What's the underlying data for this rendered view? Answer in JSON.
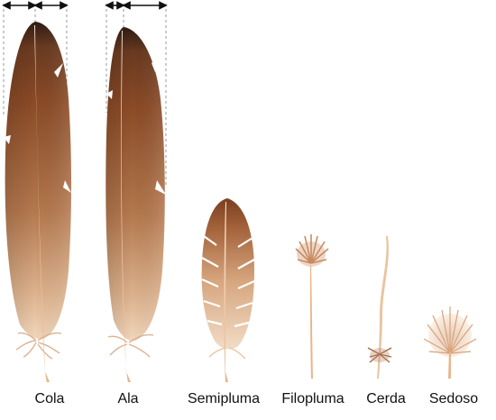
{
  "labels": {
    "cola": "Cola",
    "ala": "Ala",
    "semipluma": "Semipluma",
    "filopluma": "Filopluma",
    "cerda": "Cerda",
    "sedoso": "Sedoso"
  },
  "colors": {
    "vane_dark": "#3a2418",
    "vane_mid": "#8a4a26",
    "vane_light": "#d9ae8a",
    "vane_pale": "#f1d9c1",
    "shaft": "#f6dcc0",
    "quill": "#e9b88e",
    "arrow": "#111111",
    "guide": "#9a9a9a"
  },
  "icons": [
    "tail-feather-icon",
    "wing-feather-icon",
    "semiplume-icon",
    "filoplume-icon",
    "bristle-icon",
    "down-feather-icon"
  ]
}
